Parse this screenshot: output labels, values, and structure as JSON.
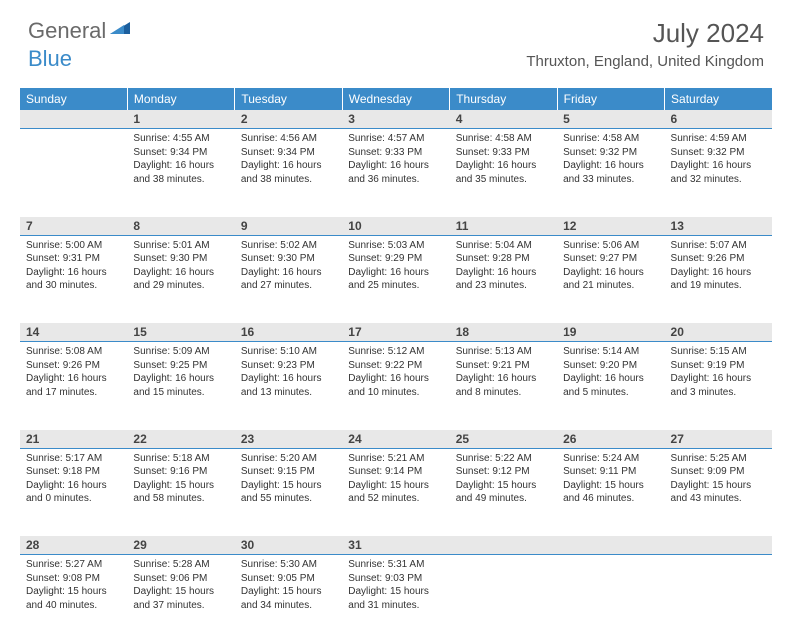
{
  "logo": {
    "part1": "General",
    "part2": "Blue"
  },
  "title": "July 2024",
  "location": "Thruxton, England, United Kingdom",
  "header_bg": "#3b8bc9",
  "header_fg": "#ffffff",
  "daynum_bg": "#e8e8e8",
  "day_border": "#3b8bc9",
  "text_color": "#333333",
  "columns": [
    "Sunday",
    "Monday",
    "Tuesday",
    "Wednesday",
    "Thursday",
    "Friday",
    "Saturday"
  ],
  "weeks": [
    {
      "nums": [
        "",
        "1",
        "2",
        "3",
        "4",
        "5",
        "6"
      ],
      "cells": [
        null,
        {
          "sunrise": "4:55 AM",
          "sunset": "9:34 PM",
          "daylight": "16 hours and 38 minutes."
        },
        {
          "sunrise": "4:56 AM",
          "sunset": "9:34 PM",
          "daylight": "16 hours and 38 minutes."
        },
        {
          "sunrise": "4:57 AM",
          "sunset": "9:33 PM",
          "daylight": "16 hours and 36 minutes."
        },
        {
          "sunrise": "4:58 AM",
          "sunset": "9:33 PM",
          "daylight": "16 hours and 35 minutes."
        },
        {
          "sunrise": "4:58 AM",
          "sunset": "9:32 PM",
          "daylight": "16 hours and 33 minutes."
        },
        {
          "sunrise": "4:59 AM",
          "sunset": "9:32 PM",
          "daylight": "16 hours and 32 minutes."
        }
      ]
    },
    {
      "nums": [
        "7",
        "8",
        "9",
        "10",
        "11",
        "12",
        "13"
      ],
      "cells": [
        {
          "sunrise": "5:00 AM",
          "sunset": "9:31 PM",
          "daylight": "16 hours and 30 minutes."
        },
        {
          "sunrise": "5:01 AM",
          "sunset": "9:30 PM",
          "daylight": "16 hours and 29 minutes."
        },
        {
          "sunrise": "5:02 AM",
          "sunset": "9:30 PM",
          "daylight": "16 hours and 27 minutes."
        },
        {
          "sunrise": "5:03 AM",
          "sunset": "9:29 PM",
          "daylight": "16 hours and 25 minutes."
        },
        {
          "sunrise": "5:04 AM",
          "sunset": "9:28 PM",
          "daylight": "16 hours and 23 minutes."
        },
        {
          "sunrise": "5:06 AM",
          "sunset": "9:27 PM",
          "daylight": "16 hours and 21 minutes."
        },
        {
          "sunrise": "5:07 AM",
          "sunset": "9:26 PM",
          "daylight": "16 hours and 19 minutes."
        }
      ]
    },
    {
      "nums": [
        "14",
        "15",
        "16",
        "17",
        "18",
        "19",
        "20"
      ],
      "cells": [
        {
          "sunrise": "5:08 AM",
          "sunset": "9:26 PM",
          "daylight": "16 hours and 17 minutes."
        },
        {
          "sunrise": "5:09 AM",
          "sunset": "9:25 PM",
          "daylight": "16 hours and 15 minutes."
        },
        {
          "sunrise": "5:10 AM",
          "sunset": "9:23 PM",
          "daylight": "16 hours and 13 minutes."
        },
        {
          "sunrise": "5:12 AM",
          "sunset": "9:22 PM",
          "daylight": "16 hours and 10 minutes."
        },
        {
          "sunrise": "5:13 AM",
          "sunset": "9:21 PM",
          "daylight": "16 hours and 8 minutes."
        },
        {
          "sunrise": "5:14 AM",
          "sunset": "9:20 PM",
          "daylight": "16 hours and 5 minutes."
        },
        {
          "sunrise": "5:15 AM",
          "sunset": "9:19 PM",
          "daylight": "16 hours and 3 minutes."
        }
      ]
    },
    {
      "nums": [
        "21",
        "22",
        "23",
        "24",
        "25",
        "26",
        "27"
      ],
      "cells": [
        {
          "sunrise": "5:17 AM",
          "sunset": "9:18 PM",
          "daylight": "16 hours and 0 minutes."
        },
        {
          "sunrise": "5:18 AM",
          "sunset": "9:16 PM",
          "daylight": "15 hours and 58 minutes."
        },
        {
          "sunrise": "5:20 AM",
          "sunset": "9:15 PM",
          "daylight": "15 hours and 55 minutes."
        },
        {
          "sunrise": "5:21 AM",
          "sunset": "9:14 PM",
          "daylight": "15 hours and 52 minutes."
        },
        {
          "sunrise": "5:22 AM",
          "sunset": "9:12 PM",
          "daylight": "15 hours and 49 minutes."
        },
        {
          "sunrise": "5:24 AM",
          "sunset": "9:11 PM",
          "daylight": "15 hours and 46 minutes."
        },
        {
          "sunrise": "5:25 AM",
          "sunset": "9:09 PM",
          "daylight": "15 hours and 43 minutes."
        }
      ]
    },
    {
      "nums": [
        "28",
        "29",
        "30",
        "31",
        "",
        "",
        ""
      ],
      "cells": [
        {
          "sunrise": "5:27 AM",
          "sunset": "9:08 PM",
          "daylight": "15 hours and 40 minutes."
        },
        {
          "sunrise": "5:28 AM",
          "sunset": "9:06 PM",
          "daylight": "15 hours and 37 minutes."
        },
        {
          "sunrise": "5:30 AM",
          "sunset": "9:05 PM",
          "daylight": "15 hours and 34 minutes."
        },
        {
          "sunrise": "5:31 AM",
          "sunset": "9:03 PM",
          "daylight": "15 hours and 31 minutes."
        },
        null,
        null,
        null
      ]
    }
  ],
  "labels": {
    "sunrise": "Sunrise:",
    "sunset": "Sunset:",
    "daylight": "Daylight:"
  }
}
